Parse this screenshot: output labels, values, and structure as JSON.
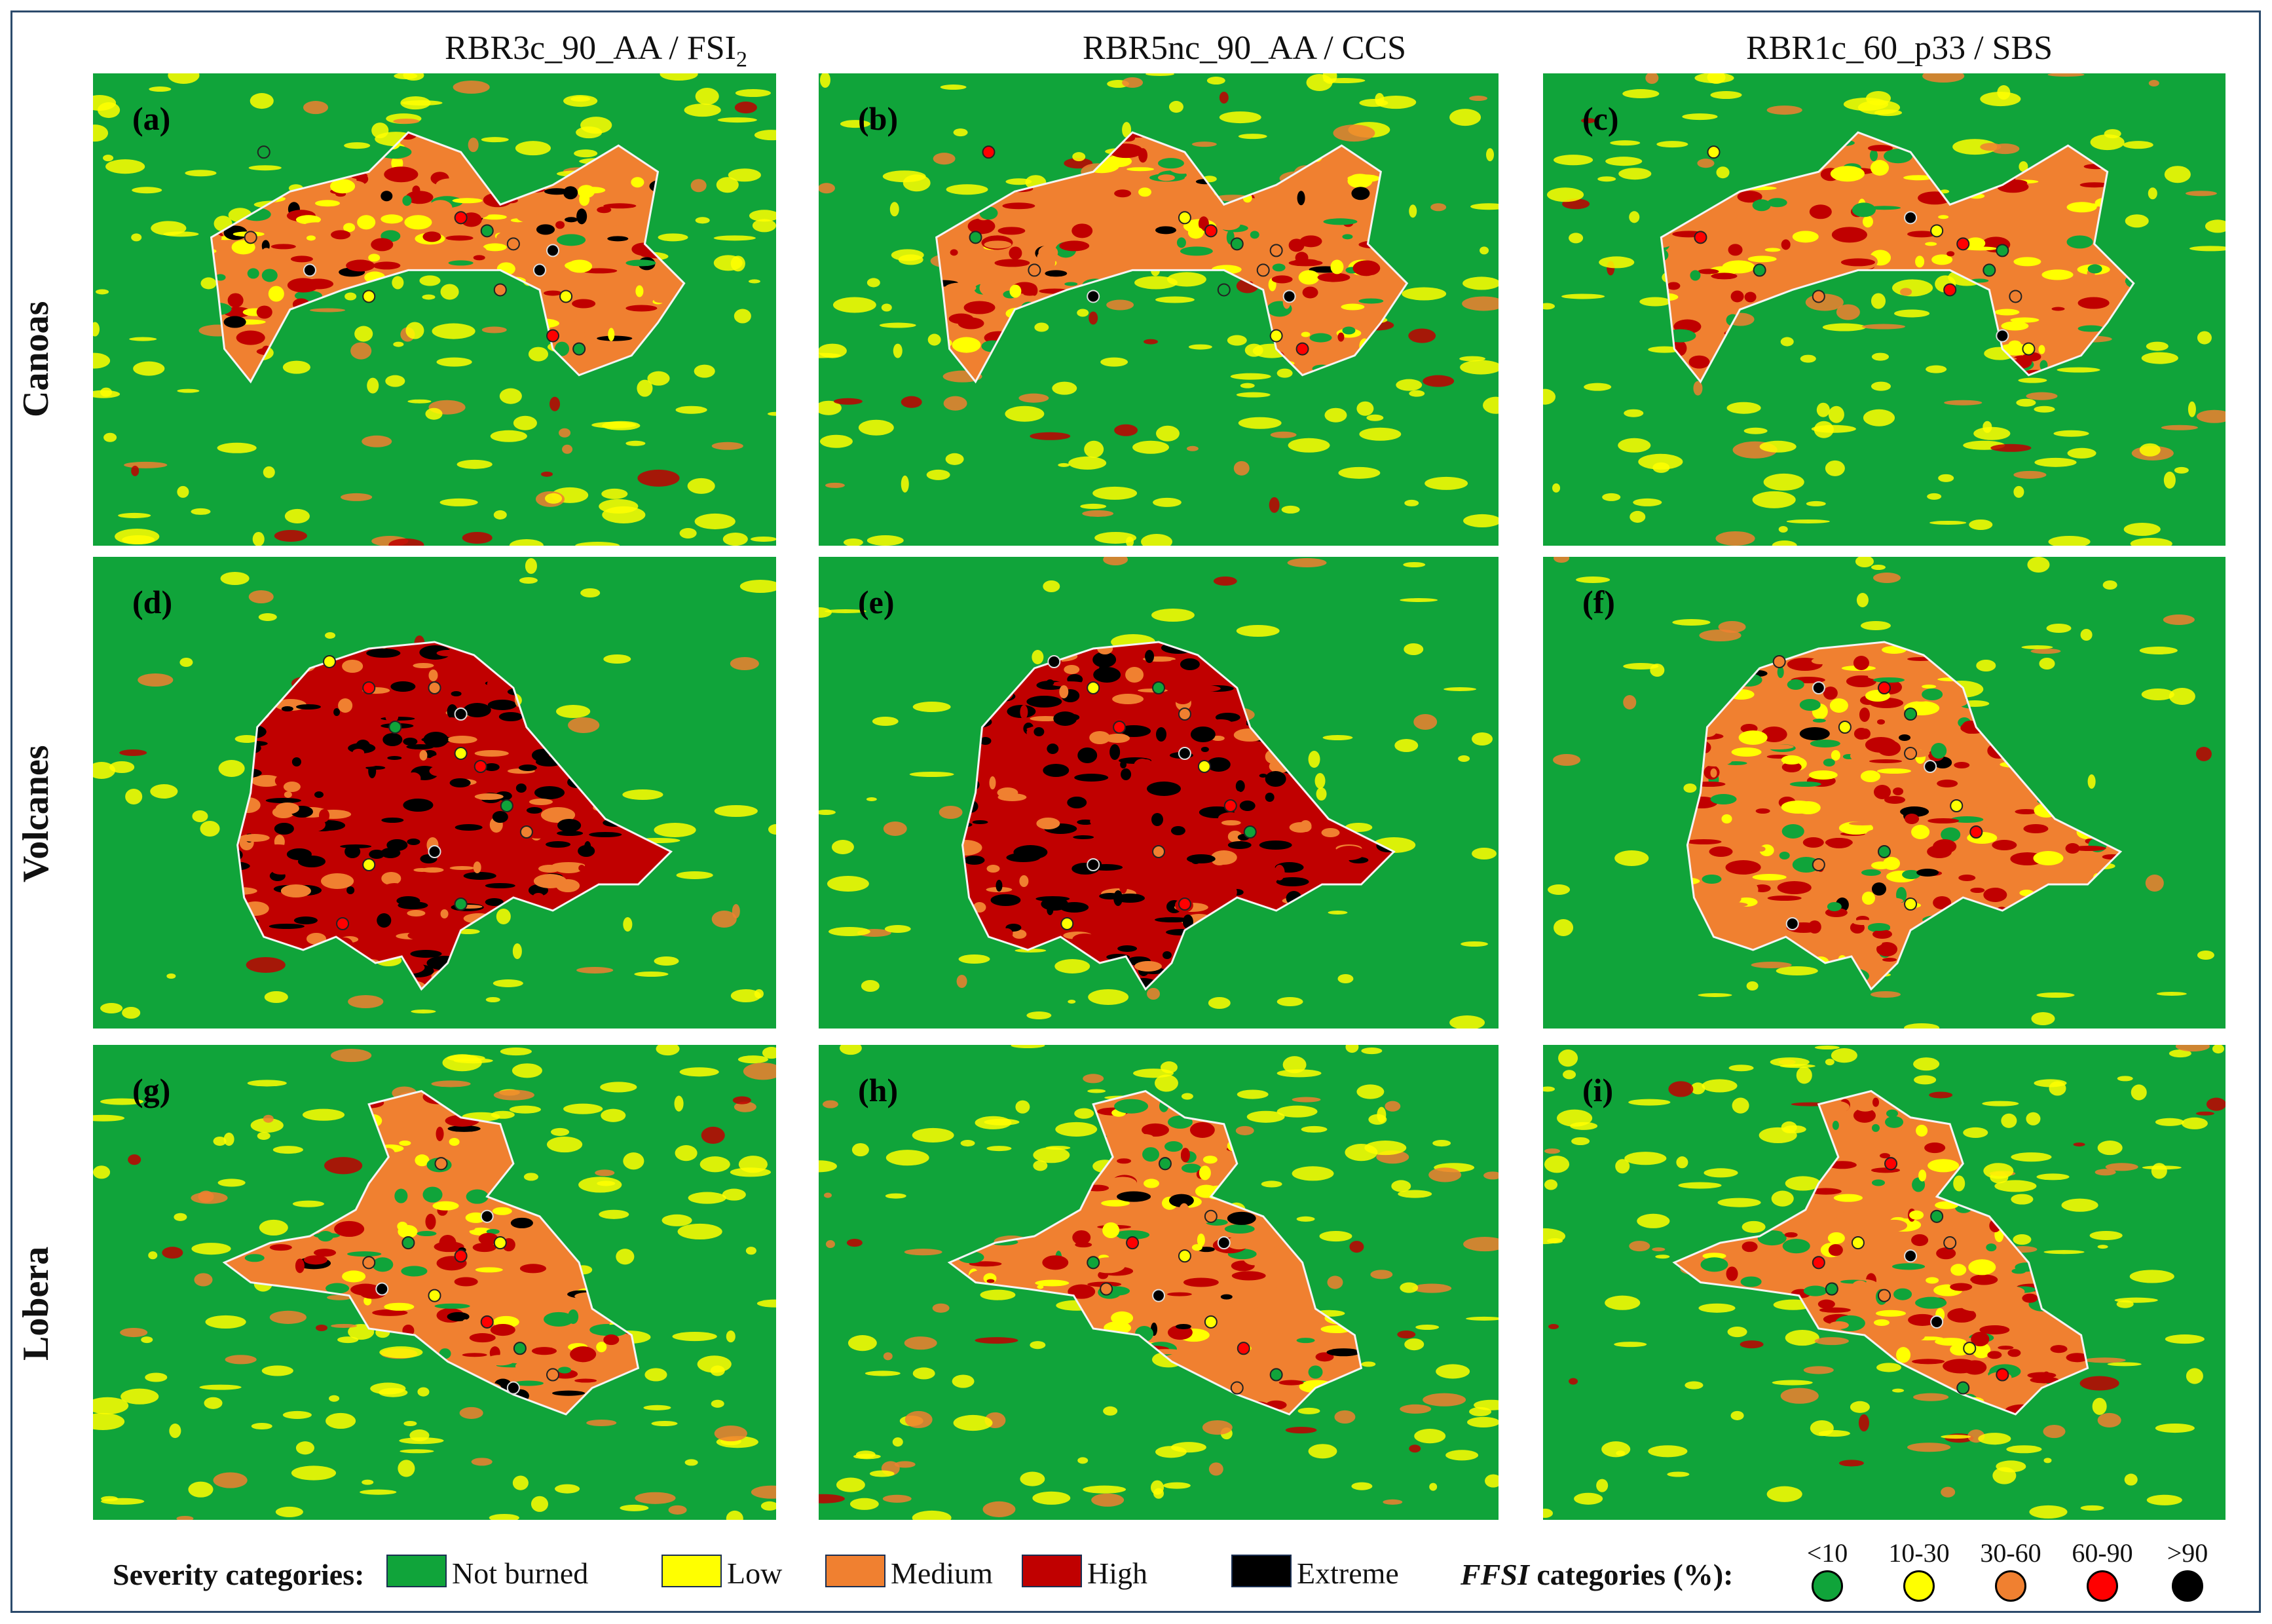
{
  "columns": [
    {
      "title_main": "RBR3c_90_AA / FSI",
      "title_sub": "2"
    },
    {
      "title_main": "RBR5nc_90_AA / CCS",
      "title_sub": ""
    },
    {
      "title_main": "RBR1c_60_p33 / SBS",
      "title_sub": ""
    }
  ],
  "rows": [
    "Canoas",
    "Volcanes",
    "Lobera"
  ],
  "panels": [
    "(a)",
    "(b)",
    "(c)",
    "(d)",
    "(e)",
    "(f)",
    "(g)",
    "(h)",
    "(i)"
  ],
  "legend": {
    "severity_title": "Severity categories:",
    "severity": [
      {
        "label": "Not burned",
        "color": "#10a43a"
      },
      {
        "label": "Low",
        "color": "#ffff00"
      },
      {
        "label": "Medium",
        "color": "#f08030"
      },
      {
        "label": "High",
        "color": "#c00000"
      },
      {
        "label": "Extreme",
        "color": "#000000"
      }
    ],
    "ffsi_title_italic": "FFSI",
    "ffsi_title_rest": " categories (%):",
    "ffsi": [
      {
        "label": "<10",
        "color": "#10a43a"
      },
      {
        "label": "10-30",
        "color": "#ffff00"
      },
      {
        "label": "30-60",
        "color": "#f08030"
      },
      {
        "label": "60-90",
        "color": "#ff0000"
      },
      {
        "label": ">90",
        "color": "#000000"
      }
    ]
  }
}
